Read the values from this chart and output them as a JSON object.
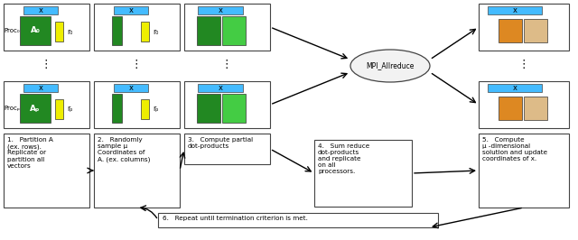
{
  "bg_color": "#ffffff",
  "box_border_color": "#444444",
  "cyan_color": "#44bbff",
  "green_dark": "#228822",
  "green_light": "#44cc44",
  "yellow_color": "#eeee00",
  "orange_color": "#dd8822",
  "light_orange_color": "#ddbb88",
  "ellipse_fill": "#f2f2f2",
  "step1_text": "1.   Partition A\n(ex. rows).\nReplicate or\npartition all\nvectors",
  "step2_text": "2.   Randomly\nsample μ\nCoordinates of\nA. (ex. columns)",
  "step3_text": "3.   Compute partial\ndot-products",
  "step4_text": "4.   Sum reduce\ndot-products\nand replicate\non all\nprocessors.",
  "step5_text": "5.   Compute\nμ -dimensional\nsolution and update\ncoordinates of x.",
  "step6_text": "6.   Repeat until termination criterion is met.",
  "mpi_text": "MPI_Allreduce",
  "proc0_label": "Proc₀",
  "procP_label": "Procₚ",
  "A0_label": "A₀",
  "Ap_label": "Aₚ",
  "r0_label": "r₀",
  "rp_label": "rₚ",
  "x_label": "x"
}
